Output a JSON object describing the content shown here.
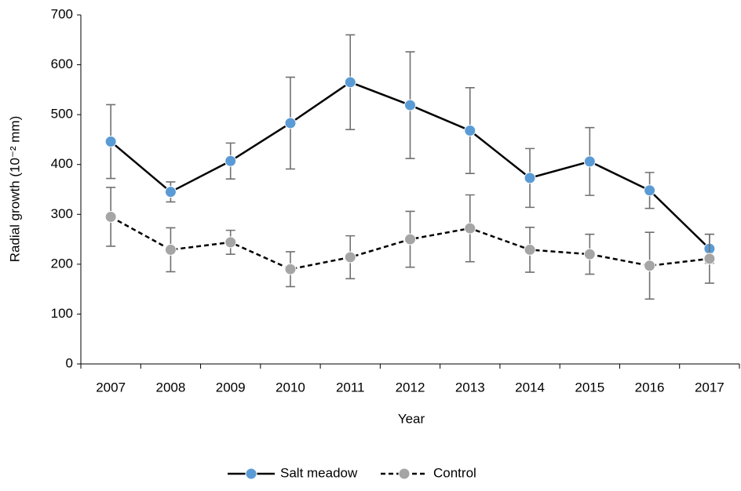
{
  "chart_data": {
    "type": "line",
    "x_label": "Year",
    "y_label": "Radial growth (10⁻² mm)",
    "categories": [
      "2007",
      "2008",
      "2009",
      "2010",
      "2011",
      "2012",
      "2013",
      "2014",
      "2015",
      "2016",
      "2017"
    ],
    "series": [
      {
        "name": "Salt meadow",
        "color": "#5b9bd5",
        "line_color": "#000000",
        "dashed": false,
        "values": [
          446,
          345,
          407,
          483,
          565,
          519,
          468,
          373,
          406,
          348,
          231
        ],
        "errors": [
          74,
          20,
          36,
          92,
          95,
          107,
          86,
          59,
          68,
          36,
          29
        ]
      },
      {
        "name": "Control",
        "color": "#a5a5a5",
        "line_color": "#000000",
        "dashed": true,
        "values": [
          295,
          229,
          244,
          190,
          214,
          250,
          272,
          229,
          220,
          197,
          211
        ],
        "errors": [
          59,
          44,
          24,
          35,
          43,
          56,
          67,
          45,
          40,
          67,
          49
        ]
      }
    ],
    "ylim": [
      0,
      700
    ],
    "yticks": [
      0,
      100,
      200,
      300,
      400,
      500,
      600,
      700
    ],
    "grid": false,
    "legend": "bottom"
  }
}
